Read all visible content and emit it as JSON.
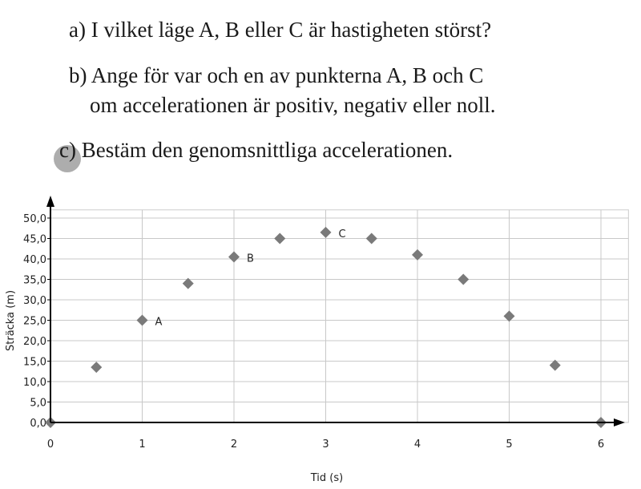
{
  "questions": [
    "a) I vilket läge A, B eller C är hastigheten störst?",
    "b) Ange för var och en av punkterna A, B och C",
    "om accelerationen är positiv, negativ eller noll.",
    "c) Bestäm den genomsnittliga accelerationen."
  ],
  "chart_data": {
    "type": "scatter",
    "x_label": "Tid (s)",
    "y_label": "Sträcka (m)",
    "x": [
      0,
      0.5,
      1,
      1.5,
      2,
      2.5,
      3,
      3.5,
      4,
      4.5,
      5,
      5.5,
      6
    ],
    "values": [
      0,
      13.5,
      25,
      34,
      40.5,
      45,
      46.5,
      45,
      41,
      35,
      26,
      14,
      0
    ],
    "color": "#7a7a7a",
    "annotations": [
      {
        "text": "A",
        "x": 1,
        "y": 25
      },
      {
        "text": "B",
        "x": 2,
        "y": 40.5
      },
      {
        "text": "C",
        "x": 3,
        "y": 46.5
      }
    ],
    "xlim": [
      0,
      6.3
    ],
    "ylim": [
      0,
      52
    ],
    "xticks": [
      0,
      1,
      2,
      3,
      4,
      5,
      6
    ],
    "yticks": [
      {
        "value": 0,
        "label": "0,0"
      },
      {
        "value": 5,
        "label": "5,0"
      },
      {
        "value": 10,
        "label": "10,0"
      },
      {
        "value": 15,
        "label": "15,0"
      },
      {
        "value": 20,
        "label": "20,0"
      },
      {
        "value": 25,
        "label": "25,0"
      },
      {
        "value": 30,
        "label": "30,0"
      },
      {
        "value": 35,
        "label": "35,0"
      },
      {
        "value": 40,
        "label": "40,0"
      },
      {
        "value": 45,
        "label": "45,0"
      },
      {
        "value": 50,
        "label": "50,0"
      }
    ],
    "grid": true
  }
}
